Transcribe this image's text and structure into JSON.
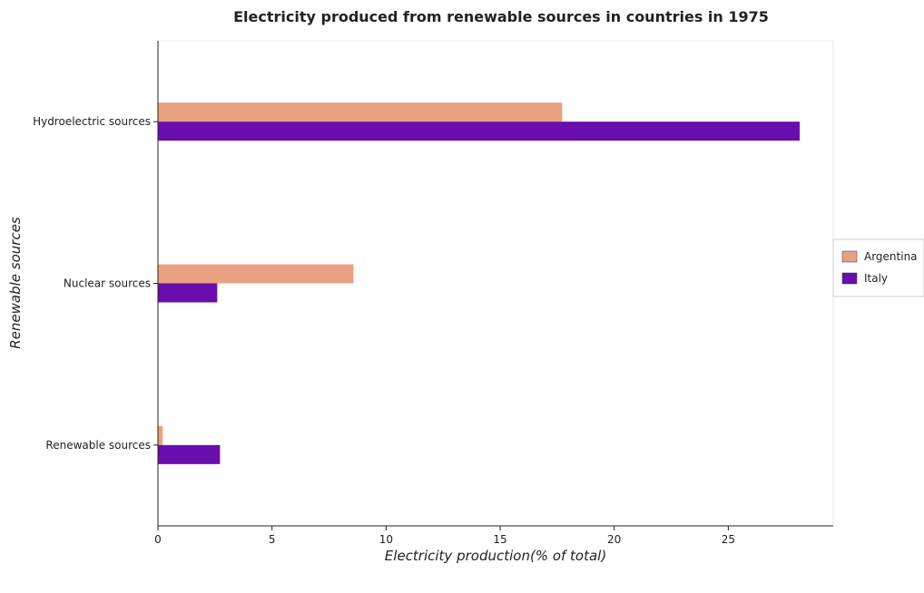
{
  "chart_data": {
    "type": "bar",
    "orientation": "horizontal",
    "title": "Electricity produced from renewable sources in countries in 1975",
    "xlabel": "Electricity production(% of total)",
    "ylabel": "Renewable sources",
    "categories": [
      "Hydroelectric sources",
      "Nuclear sources",
      "Renewable sources"
    ],
    "series": [
      {
        "name": "Argentina",
        "color": "#e8a181",
        "values": [
          17.72,
          8.57,
          0.21
        ]
      },
      {
        "name": "Italy",
        "color": "#6a0dad",
        "values": [
          28.13,
          2.6,
          2.72
        ]
      }
    ],
    "xlim": [
      0,
      29.6
    ],
    "xticks": [
      0,
      5,
      10,
      15,
      20,
      25
    ],
    "xtick_labels": [
      "0",
      "5",
      "10",
      "15",
      "20",
      "25"
    ],
    "grid": false,
    "legend_position": "right"
  }
}
